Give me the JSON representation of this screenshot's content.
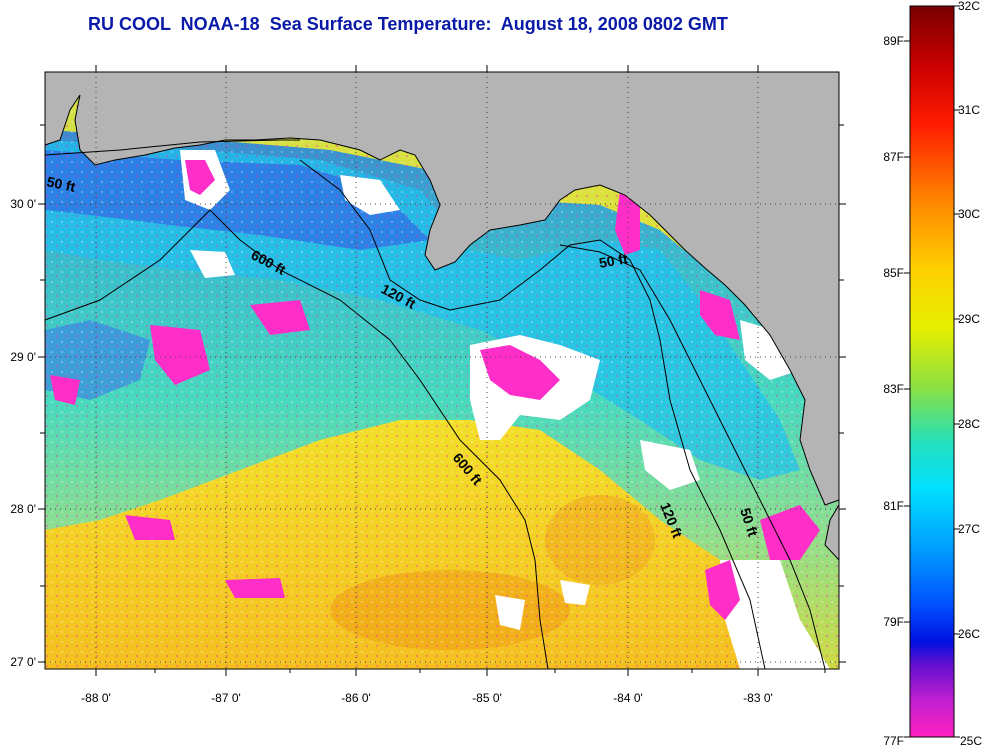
{
  "title": "RU COOL  NOAA-18  Sea Surface Temperature:  August 18, 2008 0802 GMT",
  "map": {
    "x_ticks": [
      "-88 0'",
      "-87 0'",
      "-86 0'",
      "-85 0'",
      "-84 0'",
      "-83 0'"
    ],
    "y_ticks": [
      "30 0'",
      "29 0'",
      "28 0'",
      "27 0'"
    ],
    "depth_contours": [
      "50 ft",
      "600 ft",
      "120 ft",
      "50 ft",
      "600 ft",
      "120 ft",
      "50 ft"
    ]
  },
  "colorbar": {
    "celsius": [
      "32C",
      "31C",
      "30C",
      "29C",
      "28C",
      "27C",
      "26C",
      "25C"
    ],
    "fahrenheit": [
      "89F",
      "87F",
      "85F",
      "83F",
      "81F",
      "79F",
      "77F"
    ]
  },
  "colors": {
    "title": "#0a1aa8",
    "land": "#b4b4b4",
    "cloud": "#ffffff"
  }
}
